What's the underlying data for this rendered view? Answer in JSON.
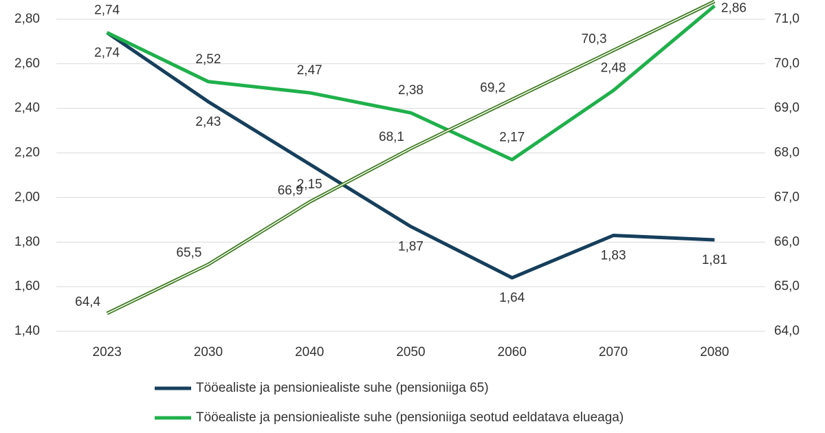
{
  "chart_data": {
    "type": "line",
    "categories": [
      "2023",
      "2030",
      "2040",
      "2050",
      "2060",
      "2070",
      "2080"
    ],
    "series": [
      {
        "name": "Tööealiste ja pensioniealiste suhe (pensioniiga 65)",
        "color": "#163f5c",
        "values": [
          2.74,
          2.43,
          2.15,
          1.87,
          1.64,
          1.83,
          1.81
        ],
        "value_labels": [
          "2,74",
          "2,43",
          "2,15",
          "1,87",
          "1,64",
          "1,83",
          "1,81"
        ]
      },
      {
        "name": "Tööealiste ja pensioniealiste suhe (pensioniiga seotud eeldatava elueaga)",
        "color": "#1fb04b",
        "values": [
          2.74,
          2.52,
          2.47,
          2.38,
          2.17,
          2.48,
          2.86
        ],
        "value_labels": [
          "2,74",
          "2,52",
          "2,47",
          "2,38",
          "2,17",
          "2,48",
          "2,86"
        ]
      },
      {
        "color": "#3c7a1e",
        "axis": "y2",
        "values": [
          64.4,
          65.5,
          66.9,
          68.1,
          69.2,
          70.3,
          71.4
        ],
        "value_labels": [
          "64,4",
          "65,5",
          "66,9",
          "68,1",
          "69,2",
          "70,3",
          null
        ]
      }
    ],
    "ylim": [
      1.4,
      2.88
    ],
    "yticks": [
      {
        "value": 1.4,
        "label": "1,40"
      },
      {
        "value": 1.6,
        "label": "1,60"
      },
      {
        "value": 1.8,
        "label": "1,80"
      },
      {
        "value": 2.0,
        "label": "2,00"
      },
      {
        "value": 2.2,
        "label": "2,20"
      },
      {
        "value": 2.4,
        "label": "2,40"
      },
      {
        "value": 2.6,
        "label": "2,60"
      },
      {
        "value": 2.8,
        "label": "2,80"
      }
    ],
    "y2lim": [
      64,
      71.4
    ],
    "y2ticks": [
      {
        "value": 64,
        "label": "64,0"
      },
      {
        "value": 65,
        "label": "65,0"
      },
      {
        "value": 66,
        "label": "66,0"
      },
      {
        "value": 67,
        "label": "67,0"
      },
      {
        "value": 68,
        "label": "68,0"
      },
      {
        "value": 69,
        "label": "69,0"
      },
      {
        "value": 70,
        "label": "70,0"
      },
      {
        "value": 71,
        "label": "71,0"
      }
    ],
    "grid": true
  }
}
